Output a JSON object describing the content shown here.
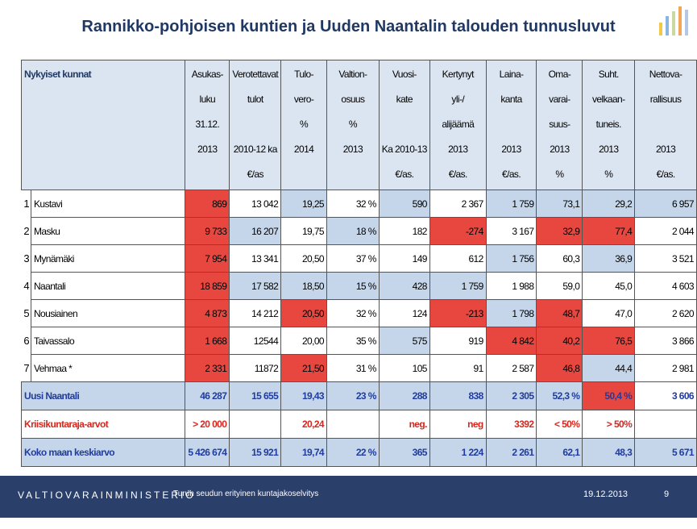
{
  "title": "Rannikko-pohjoisen kuntien  ja  Uuden Naantalin talouden tunnusluvut",
  "palette": {
    "red": "#e8473f",
    "blue": "#c6d6ea",
    "head": "#dbe5f1"
  },
  "table": {
    "header": [
      [
        "Nykyiset kunnat"
      ],
      [
        "Asukas-",
        "luku",
        "31.12.",
        "2013"
      ],
      [
        "Verotettavat",
        "tulot",
        null,
        "2010-12 ka",
        "€/as"
      ],
      [
        "Tulo-",
        "vero-",
        "%",
        "2014"
      ],
      [
        "Valtion-",
        "osuus",
        "%",
        "2013"
      ],
      [
        "Vuosi-",
        "kate",
        null,
        "Ka 2010-13",
        "€/as."
      ],
      [
        "Kertynyt",
        "yli-/",
        "alijäämä",
        "2013",
        "€/as."
      ],
      [
        "Laina-",
        "kanta",
        null,
        "2013",
        "€/as."
      ],
      [
        "Oma-",
        "varai-",
        "suus-",
        "2013",
        "%"
      ],
      [
        "Suht.",
        "velkaan-",
        "tuneis.",
        "2013",
        "%"
      ],
      [
        "Nettova-",
        "rallisuus",
        null,
        "2013",
        "€/as."
      ]
    ],
    "rows": [
      {
        "number": "1",
        "name": "Kustavi",
        "cells": [
          "869",
          "13 042",
          "19,25",
          "32 %",
          "590",
          "2 367",
          "1 759",
          "73,1",
          "29,2",
          "6 957"
        ],
        "fills": [
          "red",
          null,
          "blue",
          null,
          "blue",
          null,
          "blue",
          "blue",
          "blue",
          "blue"
        ]
      },
      {
        "number": "2",
        "name": "Masku",
        "cells": [
          "9 733",
          "16 207",
          "19,75",
          "18 %",
          "182",
          "-274",
          "3 167",
          "32,9",
          "77,4",
          "2 044"
        ],
        "fills": [
          "red",
          "blue",
          null,
          "blue",
          null,
          "red",
          null,
          "red",
          "red",
          null
        ]
      },
      {
        "number": "3",
        "name": "Mynämäki",
        "cells": [
          "7 954",
          "13 341",
          "20,50",
          "37 %",
          "149",
          "612",
          "1 756",
          "60,3",
          "36,9",
          "3 521"
        ],
        "fills": [
          "red",
          null,
          null,
          null,
          null,
          null,
          "blue",
          null,
          "blue",
          null
        ]
      },
      {
        "number": "4",
        "name": "Naantali",
        "cells": [
          "18 859",
          "17 582",
          "18,50",
          "15 %",
          "428",
          "1 759",
          "1 988",
          "59,0",
          "45,0",
          "4 603"
        ],
        "fills": [
          "red",
          "blue",
          "blue",
          "blue",
          "blue",
          "blue",
          null,
          null,
          null,
          null
        ]
      },
      {
        "number": "5",
        "name": "Nousiainen",
        "cells": [
          "4 873",
          "14 212",
          "20,50",
          "32 %",
          "124",
          "-213",
          "1 798",
          "48,7",
          "47,0",
          "2 620"
        ],
        "fills": [
          "red",
          null,
          "red",
          null,
          null,
          "red",
          "blue",
          "red",
          null,
          null
        ]
      },
      {
        "number": "6",
        "name": "Taivassalo",
        "cells": [
          "1 668",
          "12544",
          "20,00",
          "35 %",
          "575",
          "919",
          "4 842",
          "40,2",
          "76,5",
          "3 866"
        ],
        "fills": [
          "red",
          null,
          null,
          null,
          "blue",
          null,
          "red",
          "red",
          "red",
          null
        ]
      },
      {
        "number": "7",
        "name": "Vehmaa *",
        "cells": [
          "2 331",
          "11872",
          "21,50",
          "31 %",
          "105",
          "91",
          "2 587",
          "46,8",
          "44,4",
          "2 981"
        ],
        "fills": [
          "red",
          null,
          "red",
          null,
          null,
          null,
          null,
          "red",
          "blue",
          null
        ]
      }
    ],
    "summary_rows": [
      {
        "name": "Uusi Naantali",
        "color": "#1f3c9e",
        "name_fill": "blue",
        "cells": [
          "46 287",
          "15 655",
          "19,43",
          "23 %",
          "288",
          "838",
          "2 305",
          "52,3 %",
          "50,4 %",
          "3 606"
        ],
        "fills": [
          "blue",
          "blue",
          "blue",
          "blue",
          "blue",
          "blue",
          "blue",
          "blue",
          "red",
          null
        ]
      },
      {
        "name": "Kriisikuntaraja-arvot",
        "color": "#d9261c",
        "name_fill": null,
        "cells": [
          "> 20 000",
          null,
          "20,24",
          null,
          "neg.",
          "neg",
          "3392",
          "< 50%",
          "> 50%",
          null
        ],
        "fills": [
          null,
          null,
          null,
          null,
          null,
          null,
          null,
          null,
          null,
          null
        ]
      },
      {
        "name": "Koko maan keskiarvo",
        "color": "#1f3c9e",
        "name_fill": "blue",
        "cells": [
          "5 426 674",
          "15 921",
          "19,74",
          "22 %",
          "365",
          "1 224",
          "2 261",
          "62,1",
          "48,3",
          "5 671"
        ],
        "fills": [
          "blue",
          "blue",
          "blue",
          "blue",
          "blue",
          "blue",
          "blue",
          "blue",
          "blue",
          "blue"
        ]
      }
    ]
  },
  "footer": {
    "ministry": "VALTIOVARAINMINISTERIÖ",
    "subtitle": "Turun seudun erityinen kuntajakoselvitys",
    "date": "19.12.2013",
    "page": "9"
  }
}
